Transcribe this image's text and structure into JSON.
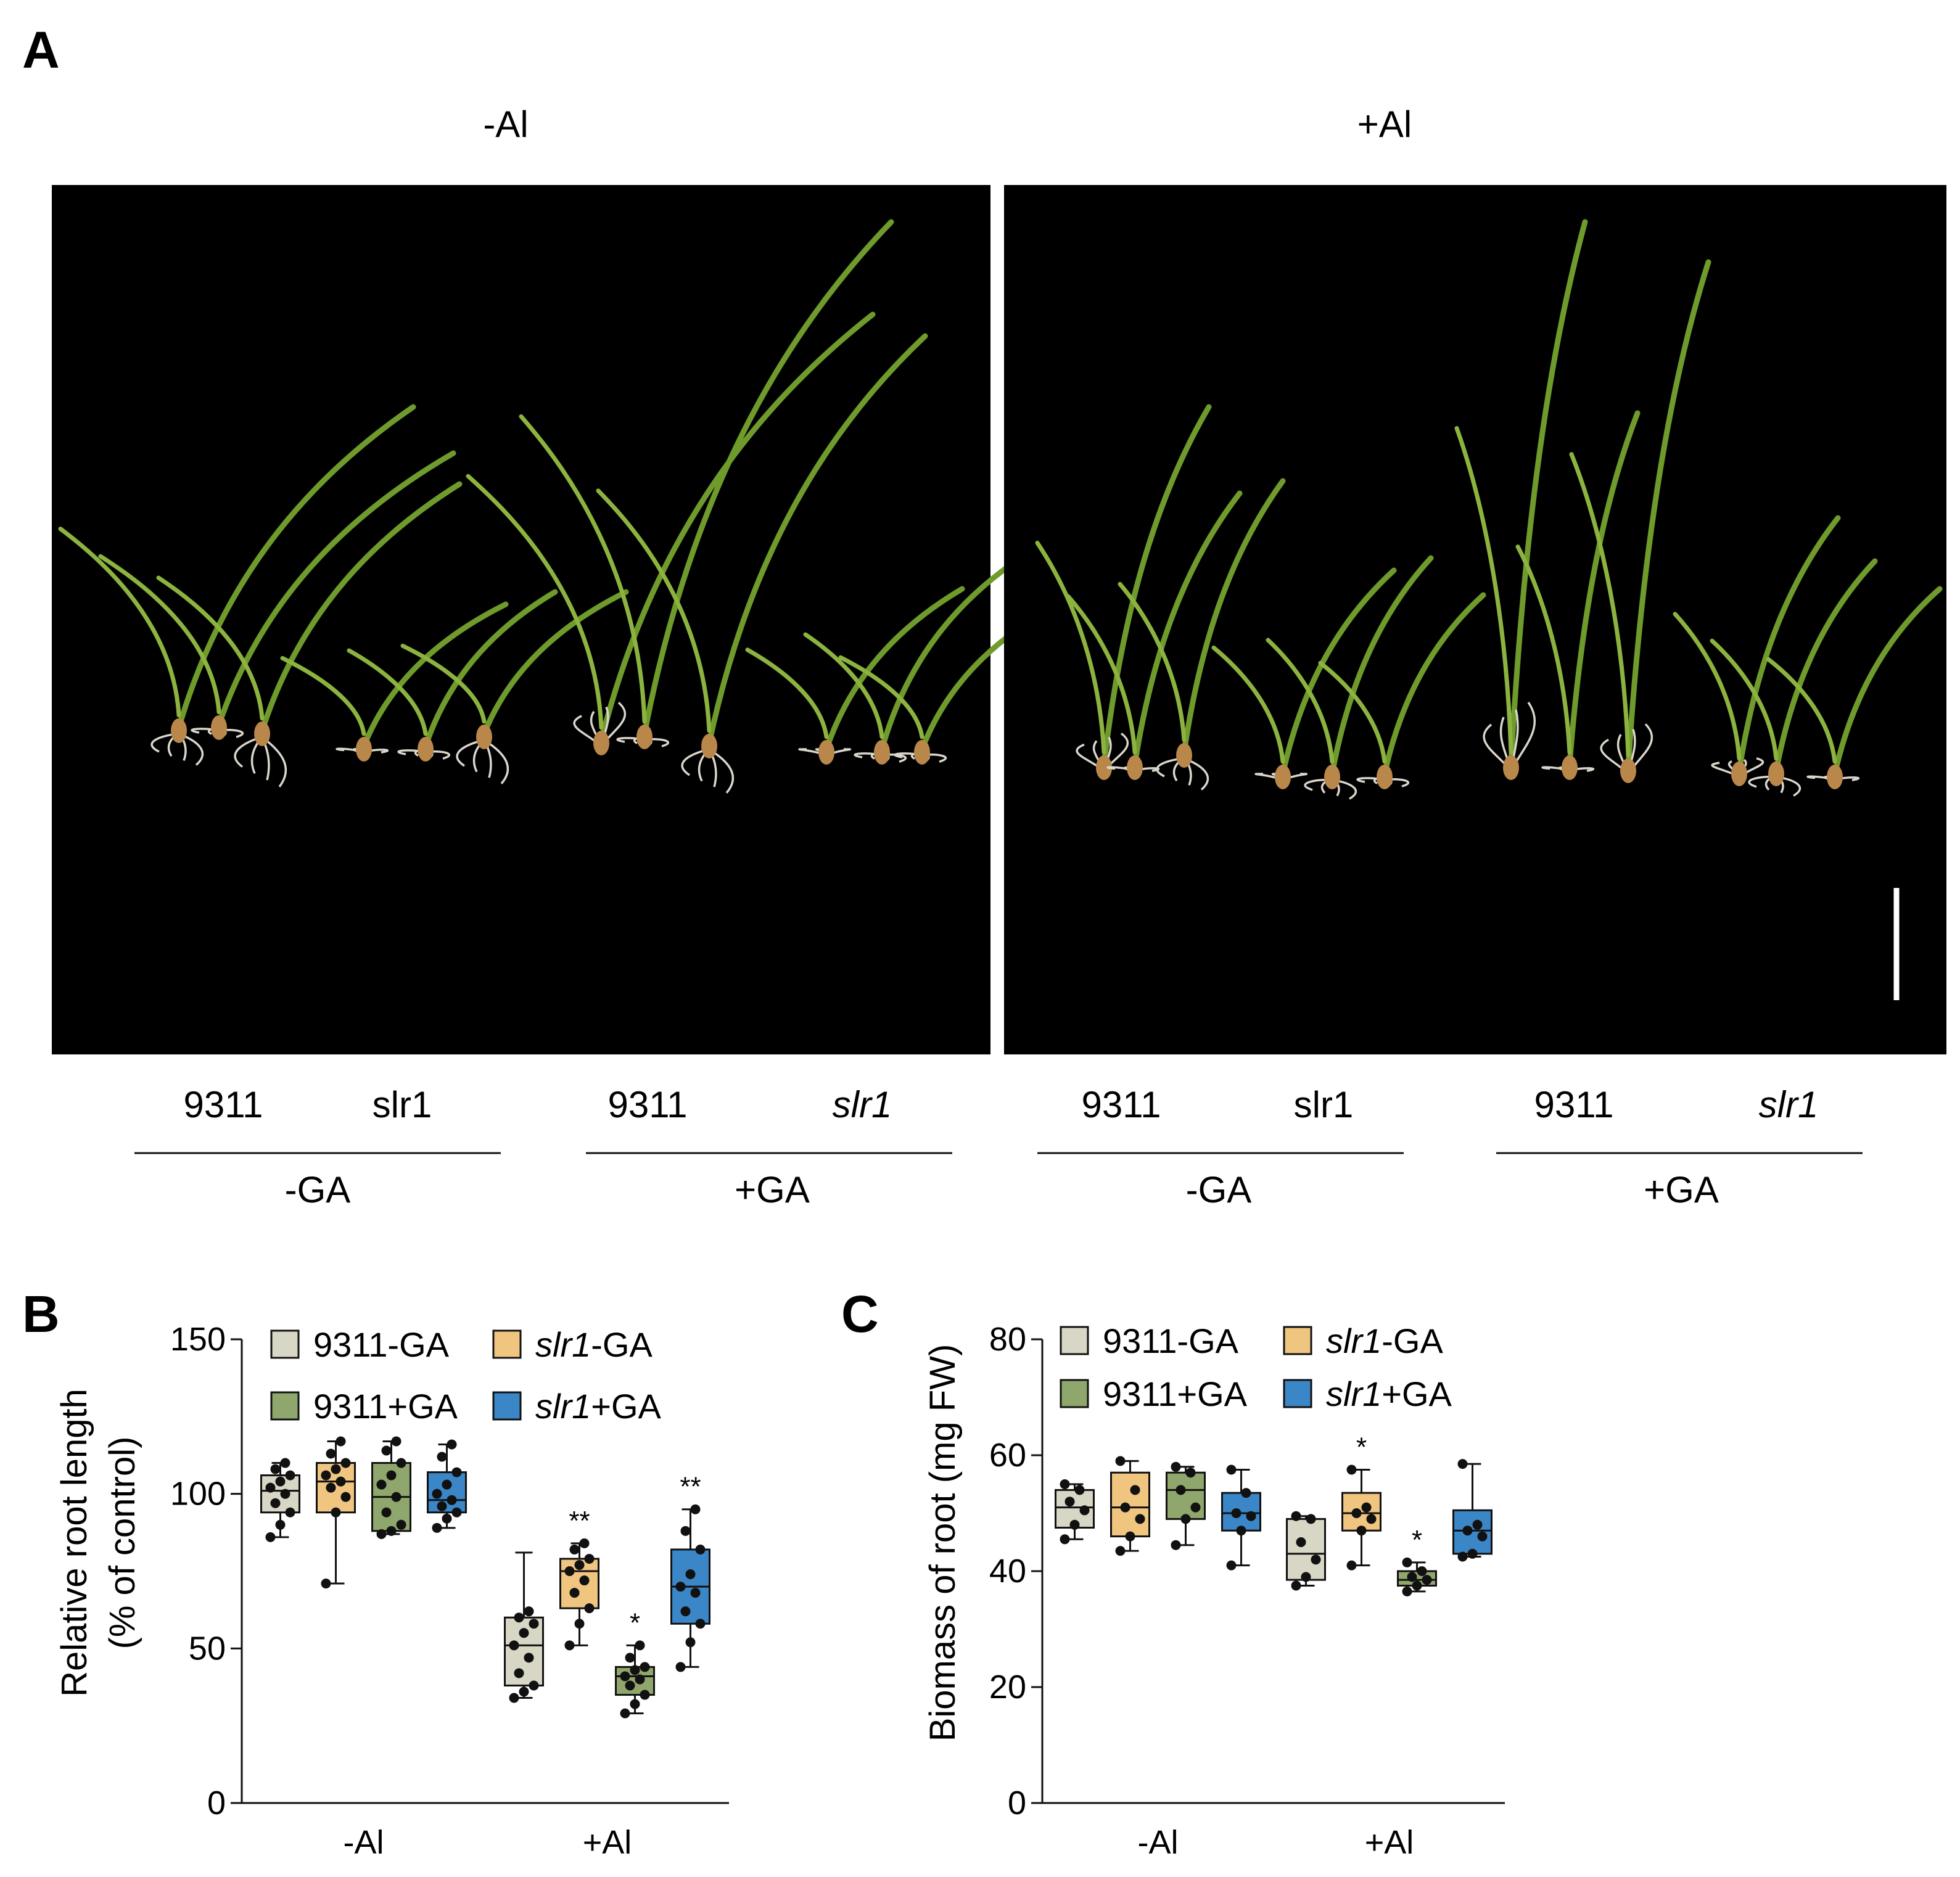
{
  "panel_a": {
    "letter": "A",
    "condition_left": "-Al",
    "condition_right": "+Al",
    "genotype_labels": [
      "9311",
      "slr1",
      "9311",
      "slr1",
      "9311",
      "slr1",
      "9311",
      "slr1"
    ],
    "genotype_italic": [
      false,
      false,
      false,
      true,
      false,
      false,
      false,
      true
    ],
    "treatment_labels": [
      "-GA",
      "+GA",
      "-GA",
      "+GA"
    ],
    "photo_description": "rice seedlings on black background",
    "colors": {
      "background": "#000000",
      "shoot": "#6f9a2c",
      "root": "#d9d6cc",
      "seed": "#b9874a",
      "scalebar": "#ffffff"
    }
  },
  "legend": {
    "items": [
      {
        "base": "9311",
        "suffix": "-GA",
        "italic": false,
        "color": "#d8d6c5"
      },
      {
        "base": "slr1",
        "suffix": "-GA",
        "italic": true,
        "color": "#efc580"
      },
      {
        "base": "9311",
        "suffix": "+GA",
        "italic": false,
        "color": "#8fa76c"
      },
      {
        "base": "slr1",
        "suffix": "+GA",
        "italic": true,
        "color": "#3b86c7"
      }
    ]
  },
  "chart_data": [
    {
      "panel": "B",
      "type": "boxplot",
      "ylabel_line1": "Relative root length",
      "ylabel_line2": "(% of control)",
      "xlabel": "",
      "categories": [
        "-Al",
        "+Al"
      ],
      "ylim": [
        0,
        150
      ],
      "yticks": [
        0,
        50,
        100,
        150
      ],
      "series": [
        {
          "name": "9311-GA",
          "boxes": [
            {
              "min": 86,
              "q1": 94,
              "median": 101,
              "q3": 106,
              "max": 110,
              "points": [
                86,
                90,
                94,
                97,
                100,
                102,
                104,
                106,
                108,
                110
              ],
              "sig": ""
            },
            {
              "min": 34,
              "q1": 38,
              "median": 51,
              "q3": 60,
              "max": 81,
              "points": [
                34,
                36,
                38,
                42,
                47,
                51,
                55,
                58,
                60,
                62
              ],
              "sig": ""
            }
          ]
        },
        {
          "name": "slr1-GA",
          "boxes": [
            {
              "min": 71,
              "q1": 94,
              "median": 104,
              "q3": 110,
              "max": 117,
              "points": [
                71,
                94,
                99,
                102,
                104,
                106,
                108,
                110,
                113,
                117
              ],
              "sig": ""
            },
            {
              "min": 51,
              "q1": 63,
              "median": 75,
              "q3": 79,
              "max": 84,
              "points": [
                51,
                58,
                63,
                68,
                72,
                75,
                77,
                79,
                82,
                84
              ],
              "sig": "**"
            }
          ]
        },
        {
          "name": "9311+GA",
          "boxes": [
            {
              "min": 87,
              "q1": 88,
              "median": 99,
              "q3": 110,
              "max": 117,
              "points": [
                87,
                88,
                90,
                94,
                99,
                103,
                106,
                110,
                114,
                117
              ],
              "sig": ""
            },
            {
              "min": 29,
              "q1": 35,
              "median": 41,
              "q3": 44,
              "max": 51,
              "points": [
                29,
                32,
                35,
                38,
                40,
                41,
                43,
                44,
                47,
                51
              ],
              "sig": "*"
            }
          ]
        },
        {
          "name": "slr1+GA",
          "boxes": [
            {
              "min": 89,
              "q1": 94,
              "median": 98,
              "q3": 107,
              "max": 116,
              "points": [
                89,
                92,
                94,
                96,
                98,
                100,
                103,
                107,
                112,
                116
              ],
              "sig": ""
            },
            {
              "min": 44,
              "q1": 58,
              "median": 70,
              "q3": 82,
              "max": 95,
              "points": [
                44,
                52,
                58,
                62,
                68,
                70,
                74,
                82,
                88,
                95
              ],
              "sig": "**"
            }
          ]
        }
      ]
    },
    {
      "panel": "C",
      "type": "boxplot",
      "ylabel": "Biomass of root (mg FW)",
      "xlabel": "",
      "categories": [
        "-Al",
        "+Al"
      ],
      "ylim": [
        0,
        80
      ],
      "yticks": [
        0,
        20,
        40,
        60,
        80
      ],
      "series": [
        {
          "name": "9311-GA",
          "boxes": [
            {
              "min": 45.5,
              "q1": 47.5,
              "median": 51,
              "q3": 54,
              "max": 55,
              "points": [
                45.5,
                48,
                50.5,
                52,
                54,
                55
              ],
              "sig": ""
            },
            {
              "min": 37.5,
              "q1": 38.5,
              "median": 43,
              "q3": 49,
              "max": 49.5,
              "points": [
                37.5,
                39,
                42,
                45,
                49,
                49.5
              ],
              "sig": ""
            }
          ]
        },
        {
          "name": "slr1-GA",
          "boxes": [
            {
              "min": 43.5,
              "q1": 46,
              "median": 51,
              "q3": 57,
              "max": 59,
              "points": [
                43.5,
                46,
                49,
                51,
                54,
                59
              ],
              "sig": ""
            },
            {
              "min": 41,
              "q1": 47,
              "median": 50,
              "q3": 53.5,
              "max": 57.5,
              "points": [
                41,
                47,
                49,
                50,
                51,
                57.5
              ],
              "sig": "*"
            }
          ]
        },
        {
          "name": "9311+GA",
          "boxes": [
            {
              "min": 44.5,
              "q1": 49,
              "median": 54,
              "q3": 57,
              "max": 58,
              "points": [
                44.5,
                49,
                51,
                54,
                57,
                58
              ],
              "sig": ""
            },
            {
              "min": 36.5,
              "q1": 37.5,
              "median": 38.5,
              "q3": 40,
              "max": 41.5,
              "points": [
                36.5,
                37.5,
                38.5,
                39,
                40,
                41.5
              ],
              "sig": "*"
            }
          ]
        },
        {
          "name": "slr1+GA",
          "boxes": [
            {
              "min": 41,
              "q1": 47,
              "median": 50,
              "q3": 53.5,
              "max": 57.5,
              "points": [
                41,
                47,
                49.5,
                50,
                53.5,
                57.5
              ],
              "sig": ""
            },
            {
              "min": 42.5,
              "q1": 43,
              "median": 47,
              "q3": 50.5,
              "max": 58.5,
              "points": [
                42.5,
                43,
                46,
                47,
                48,
                58.5
              ],
              "sig": ""
            }
          ]
        }
      ]
    }
  ]
}
